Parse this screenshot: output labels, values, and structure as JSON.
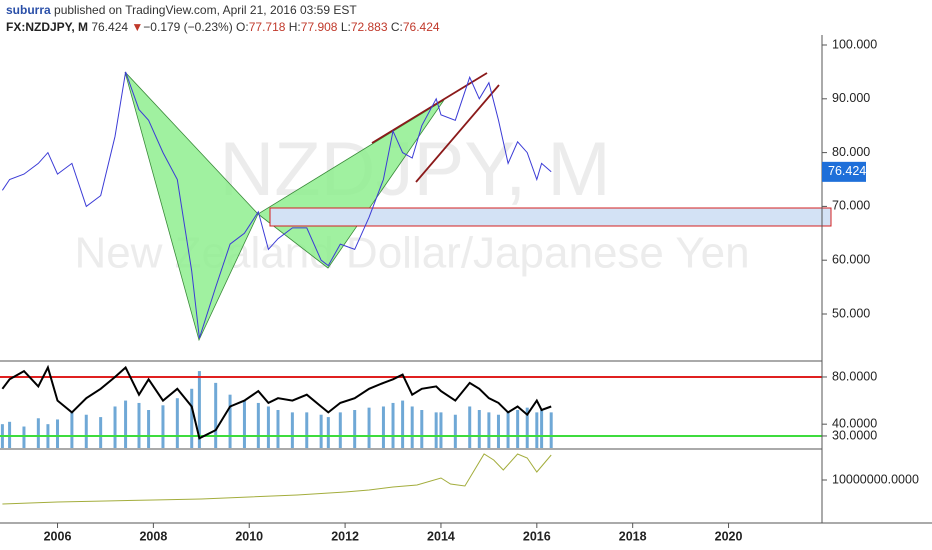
{
  "header": {
    "user": "suburra",
    "published": "published on TradingView.com, April 21, 2016 03:59 EST",
    "symbol": "FX:NZDJPY, M",
    "price": "76.424",
    "arrow": "▼",
    "change": "−0.179 (−0.23%)",
    "ohlc": [
      {
        "label": "O:",
        "value": "77.718"
      },
      {
        "label": "H:",
        "value": "77.908"
      },
      {
        "label": "L:",
        "value": "72.883"
      },
      {
        "label": "C:",
        "value": "76.424"
      }
    ]
  },
  "watermark": {
    "symbol": "NZDJPY, M",
    "description": "New Zealand Dollar/Japanese Yen"
  },
  "chart_data": [
    {
      "type": "line",
      "color": "#3b3bd6",
      "x": [
        2004.85,
        2005.0,
        2005.3,
        2005.6,
        2005.8,
        2006.0,
        2006.3,
        2006.6,
        2006.9,
        2007.2,
        2007.42,
        2007.7,
        2007.9,
        2008.2,
        2008.5,
        2008.8,
        2008.96,
        2009.3,
        2009.6,
        2009.9,
        2010.19,
        2010.4,
        2010.6,
        2010.9,
        2011.2,
        2011.5,
        2011.65,
        2011.9,
        2012.2,
        2012.5,
        2012.8,
        2013.0,
        2013.2,
        2013.4,
        2013.6,
        2013.9,
        2014.0,
        2014.3,
        2014.6,
        2014.8,
        2015.0,
        2015.2,
        2015.4,
        2015.6,
        2015.8,
        2016.0,
        2016.1,
        2016.3
      ],
      "values": [
        73,
        75,
        76,
        78,
        80,
        76,
        78,
        70,
        72,
        83,
        95,
        88,
        86,
        80,
        75,
        58,
        45.5,
        55,
        63,
        65,
        69,
        62,
        64,
        66,
        66,
        60,
        59,
        63,
        62,
        68,
        75,
        84,
        80,
        79,
        85,
        90,
        87,
        86,
        94,
        90,
        93,
        86,
        78,
        82,
        80,
        75,
        78,
        76.424
      ],
      "xlim": [
        2004.8,
        2021.95
      ],
      "xticks": [
        2006,
        2008,
        2010,
        2012,
        2014,
        2016,
        2018,
        2020
      ],
      "ylim": [
        41.45,
        101.86
      ],
      "yticks": [
        {
          "value": 50,
          "label": "50.000"
        },
        {
          "value": 60,
          "label": "60.000"
        },
        {
          "value": 70,
          "label": "70.000"
        },
        {
          "value": 80,
          "label": "80.000"
        },
        {
          "value": 90,
          "label": "90.000"
        },
        {
          "value": 100,
          "label": "100.000"
        }
      ]
    },
    {
      "type": "combo",
      "color": "#000000",
      "bar_color": "#6fa8d6",
      "x": [
        2004.85,
        2005.0,
        2005.3,
        2005.6,
        2005.8,
        2006.0,
        2006.3,
        2006.6,
        2006.9,
        2007.2,
        2007.42,
        2007.7,
        2007.9,
        2008.2,
        2008.5,
        2008.8,
        2008.96,
        2009.3,
        2009.6,
        2009.9,
        2010.19,
        2010.4,
        2010.6,
        2010.9,
        2011.2,
        2011.5,
        2011.65,
        2011.9,
        2012.2,
        2012.5,
        2012.8,
        2013.0,
        2013.2,
        2013.4,
        2013.6,
        2013.9,
        2014.0,
        2014.3,
        2014.6,
        2014.8,
        2015.0,
        2015.2,
        2015.4,
        2015.6,
        2015.8,
        2016.0,
        2016.1,
        2016.3
      ],
      "values": [
        70,
        78,
        85,
        72,
        88,
        60,
        50,
        62,
        70,
        80,
        88,
        65,
        78,
        60,
        70,
        55,
        28,
        35,
        55,
        60,
        68,
        58,
        62,
        60,
        65,
        55,
        50,
        58,
        62,
        70,
        75,
        78,
        82,
        65,
        70,
        72,
        68,
        60,
        75,
        70,
        62,
        58,
        50,
        55,
        48,
        60,
        52,
        55
      ],
      "bars": [
        40,
        42,
        38,
        45,
        40,
        44,
        50,
        48,
        46,
        55,
        60,
        58,
        52,
        56,
        62,
        70,
        85,
        75,
        65,
        60,
        58,
        55,
        52,
        50,
        50,
        48,
        46,
        50,
        52,
        54,
        55,
        58,
        60,
        55,
        52,
        50,
        50,
        48,
        55,
        52,
        50,
        48,
        50,
        52,
        54,
        50,
        52,
        50
      ],
      "levels": [
        80,
        30
      ],
      "level_colors": [
        "#e02020",
        "#3ddc3d"
      ],
      "ylim": [
        19.8,
        92.7
      ],
      "yticks": [
        {
          "value": 30,
          "label": "30.0000"
        },
        {
          "value": 40,
          "label": "40.0000"
        },
        {
          "value": 80,
          "label": "80.0000"
        }
      ]
    },
    {
      "type": "line",
      "color": "#a3ad3c",
      "x": [
        2004.85,
        2006,
        2007,
        2008,
        2009,
        2010,
        2011,
        2012,
        2012.5,
        2013,
        2013.5,
        2014.0,
        2014.2,
        2014.5,
        2014.9,
        2015.1,
        2015.3,
        2015.6,
        2015.8,
        2016.0,
        2016.3
      ],
      "values": [
        7600000,
        7800000,
        7900000,
        8000000,
        8100000,
        8300000,
        8500000,
        8800000,
        9000000,
        9300000,
        9500000,
        10200000,
        9600000,
        9400000,
        12600000,
        12000000,
        11000000,
        12600000,
        12200000,
        10800000,
        12500000
      ],
      "ylim": [
        5800000,
        13000000
      ],
      "yticks": [
        {
          "value": 10000000,
          "label": "10000000.0000"
        }
      ]
    }
  ]
}
